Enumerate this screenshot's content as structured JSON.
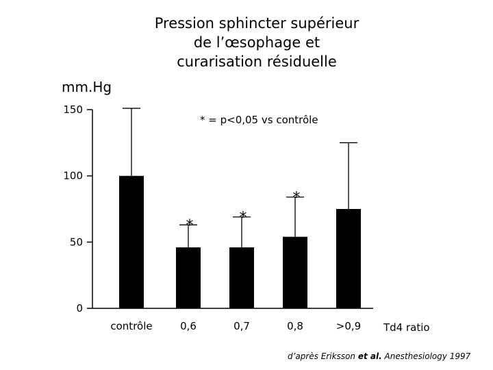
{
  "title_lines": [
    "Pression sphincter supérieur",
    "de l’œsophage et",
    "curarisation résiduelle"
  ],
  "chart_data": {
    "type": "bar",
    "title": "Pression sphincter supérieur de l’œsophage et curarisation résiduelle",
    "ylabel": "mm.Hg",
    "xlabel": "Td4 ratio",
    "ylim": [
      0,
      150
    ],
    "yticks": [
      0,
      50,
      100,
      150
    ],
    "categories": [
      "contrôle",
      "0,6",
      "0,7",
      "0,8",
      ">0,9"
    ],
    "values": [
      100,
      46,
      46,
      54,
      75
    ],
    "error_upper": [
      151,
      63,
      69,
      84,
      125
    ],
    "significant": [
      false,
      true,
      true,
      true,
      false
    ],
    "significance_symbol": "*",
    "annotation": "* = p<0,05 vs contrôle",
    "colors": {
      "bar": "#000000",
      "axis": "#000000"
    }
  },
  "source": {
    "prefix": "d’après Eriksson ",
    "etal": "et al.",
    "suffix": " Anesthesiology 1997"
  }
}
